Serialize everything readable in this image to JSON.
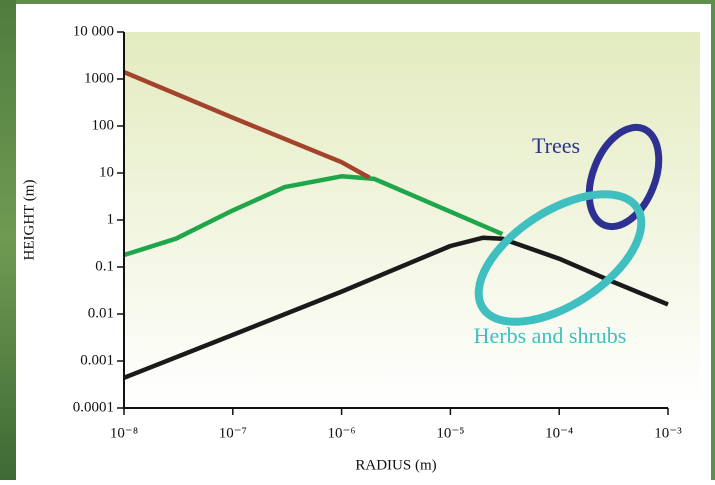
{
  "chart_data": {
    "type": "line",
    "xlabel": "RADIUS (m)",
    "ylabel": "HEIGHT (m)",
    "xlog": true,
    "ylog": true,
    "xlim": [
      1e-08,
      0.001
    ],
    "ylim": [
      0.0001,
      10000
    ],
    "xticks": [
      {
        "value": 1e-08,
        "label": "10⁻⁸"
      },
      {
        "value": 1e-07,
        "label": "10⁻⁷"
      },
      {
        "value": 1e-06,
        "label": "10⁻⁶"
      },
      {
        "value": 1e-05,
        "label": "10⁻⁵"
      },
      {
        "value": 0.0001,
        "label": "10⁻⁴"
      },
      {
        "value": 0.001,
        "label": "10⁻³"
      }
    ],
    "yticks": [
      {
        "value": 10000,
        "label": "10 000"
      },
      1000,
      100,
      10,
      1,
      0.1,
      0.01,
      0.001,
      0.0001
    ],
    "series": [
      {
        "color": "#a3432c",
        "x": [
          1e-08,
          1e-07,
          1e-06,
          1.8e-06
        ],
        "values": [
          1400,
          150,
          17,
          8
        ]
      },
      {
        "color": "#1fa64a",
        "x": [
          1e-08,
          3e-08,
          1e-07,
          3e-07,
          1e-06,
          2e-06,
          1e-05,
          3e-05
        ],
        "values": [
          0.18,
          0.4,
          1.6,
          5,
          8.5,
          7.5,
          1.5,
          0.5
        ]
      },
      {
        "color": "#1a1a1a",
        "x": [
          1e-08,
          1e-07,
          1e-06,
          1e-05,
          2e-05,
          3e-05,
          0.0001,
          0.0003,
          0.001
        ],
        "values": [
          0.00044,
          0.0036,
          0.03,
          0.28,
          0.42,
          0.4,
          0.15,
          0.05,
          0.016
        ]
      }
    ],
    "annotations": [
      "Trees",
      "Herbs and shrubs"
    ]
  }
}
